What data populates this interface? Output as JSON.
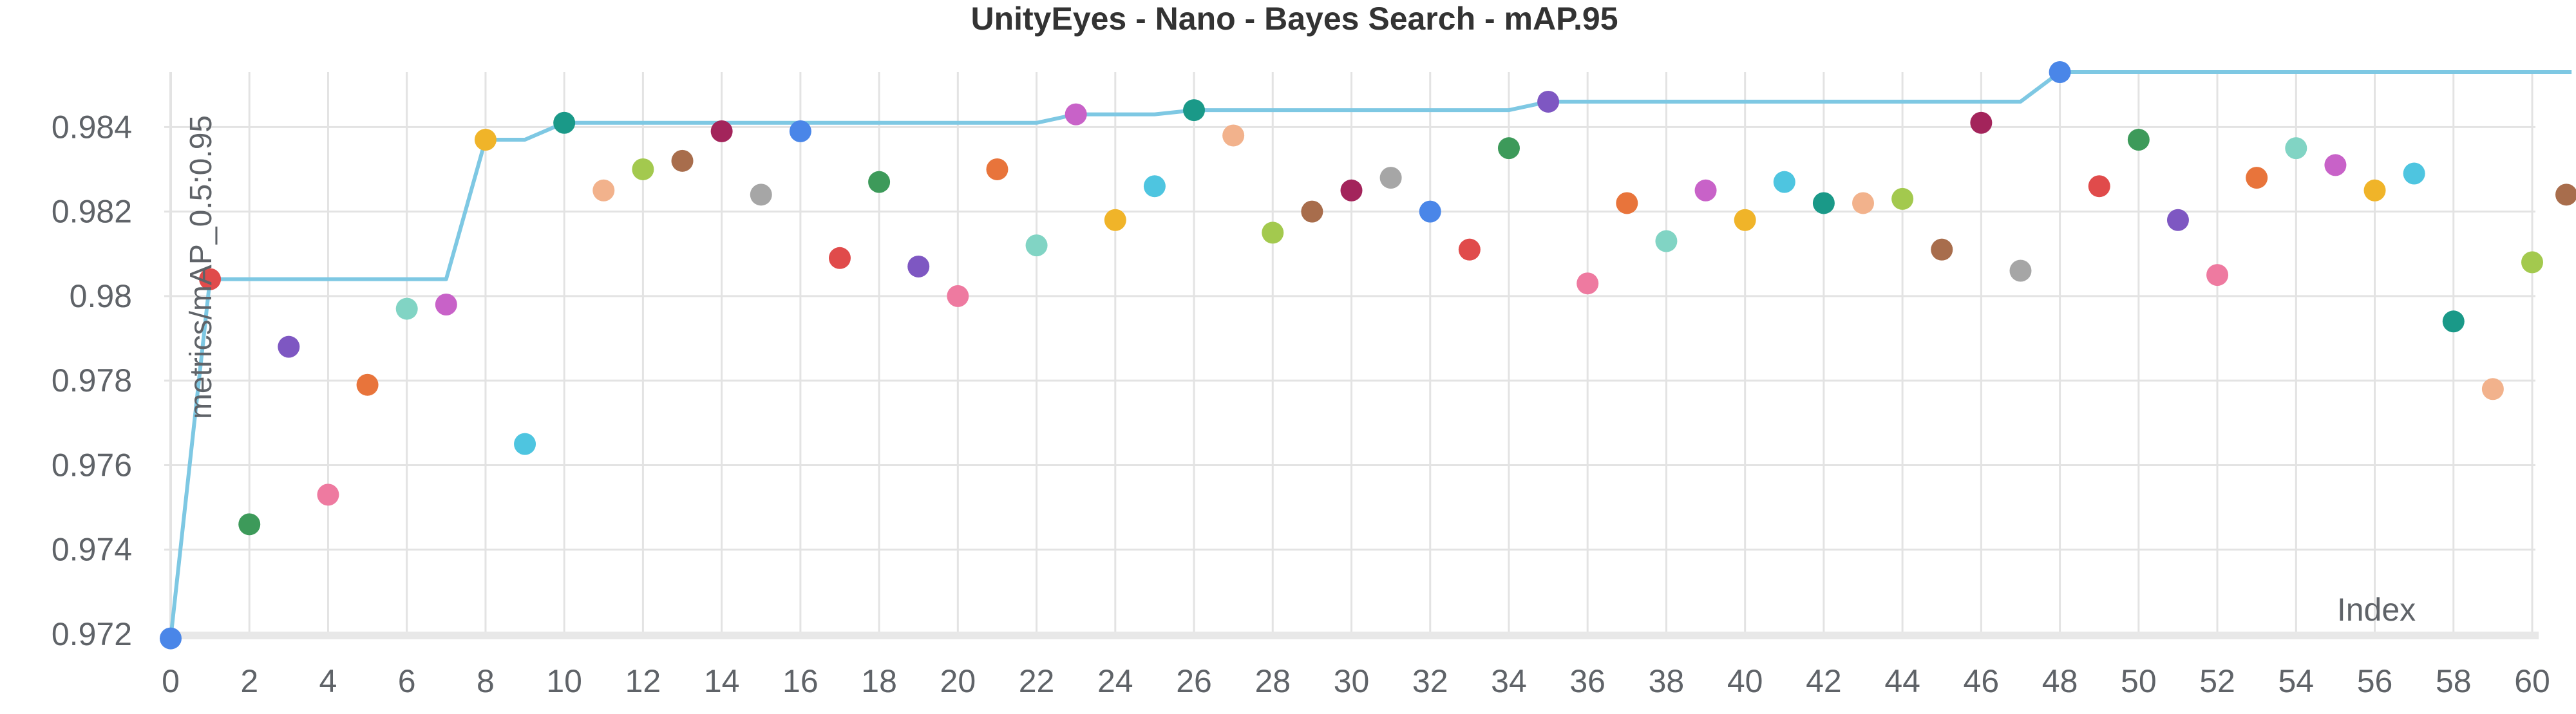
{
  "chart_data": {
    "type": "scatter",
    "title": "UnityEyes - Nano - Bayes Search - mAP.95",
    "xlabel": "Index",
    "ylabel": "metrics/mAP_0.5:0.95",
    "xlim": [
      0,
      60
    ],
    "ylim": [
      0.972,
      0.9853
    ],
    "x_ticks": [
      "0",
      "2",
      "4",
      "6",
      "8",
      "10",
      "12",
      "14",
      "16",
      "18",
      "20",
      "22",
      "24",
      "26",
      "28",
      "30",
      "32",
      "34",
      "36",
      "38",
      "40",
      "42",
      "44",
      "46",
      "48",
      "50",
      "52",
      "54",
      "56",
      "58",
      "60"
    ],
    "y_ticks": [
      "0.972",
      "0.974",
      "0.976",
      "0.978",
      "0.98",
      "0.982",
      "0.984"
    ],
    "grid": true,
    "legend": "none",
    "series": [
      {
        "type": "scatter",
        "points": [
          {
            "x": 0,
            "y": 0.9719,
            "color": "#4a86e8"
          },
          {
            "x": 1,
            "y": 0.9804,
            "color": "#e04b4b"
          },
          {
            "x": 2,
            "y": 0.9746,
            "color": "#3d9a5a"
          },
          {
            "x": 3,
            "y": 0.9788,
            "color": "#7e57c2"
          },
          {
            "x": 4,
            "y": 0.9753,
            "color": "#ee7aa0"
          },
          {
            "x": 5,
            "y": 0.9779,
            "color": "#e8743b"
          },
          {
            "x": 6,
            "y": 0.9797,
            "color": "#81d4c4"
          },
          {
            "x": 7,
            "y": 0.9798,
            "color": "#c862c8"
          },
          {
            "x": 8,
            "y": 0.9837,
            "color": "#f0b429"
          },
          {
            "x": 9,
            "y": 0.9765,
            "color": "#4ec5e0"
          },
          {
            "x": 10,
            "y": 0.9841,
            "color": "#1a9988"
          },
          {
            "x": 11,
            "y": 0.9825,
            "color": "#f2b28c"
          },
          {
            "x": 12,
            "y": 0.983,
            "color": "#a3c94e"
          },
          {
            "x": 13,
            "y": 0.9832,
            "color": "#a86d4c"
          },
          {
            "x": 14,
            "y": 0.9839,
            "color": "#a3245b"
          },
          {
            "x": 15,
            "y": 0.9824,
            "color": "#a6a6a6"
          },
          {
            "x": 16,
            "y": 0.9839,
            "color": "#4a86e8"
          },
          {
            "x": 17,
            "y": 0.9809,
            "color": "#e04b4b"
          },
          {
            "x": 18,
            "y": 0.9827,
            "color": "#3d9a5a"
          },
          {
            "x": 19,
            "y": 0.9807,
            "color": "#7e57c2"
          },
          {
            "x": 20,
            "y": 0.98,
            "color": "#ee7aa0"
          },
          {
            "x": 21,
            "y": 0.983,
            "color": "#e8743b"
          },
          {
            "x": 22,
            "y": 0.9812,
            "color": "#81d4c4"
          },
          {
            "x": 23,
            "y": 0.9843,
            "color": "#c862c8"
          },
          {
            "x": 24,
            "y": 0.9818,
            "color": "#f0b429"
          },
          {
            "x": 25,
            "y": 0.9826,
            "color": "#4ec5e0"
          },
          {
            "x": 26,
            "y": 0.9844,
            "color": "#1a9988"
          },
          {
            "x": 27,
            "y": 0.9838,
            "color": "#f2b28c"
          },
          {
            "x": 28,
            "y": 0.9815,
            "color": "#a3c94e"
          },
          {
            "x": 29,
            "y": 0.982,
            "color": "#a86d4c"
          },
          {
            "x": 30,
            "y": 0.9825,
            "color": "#a3245b"
          },
          {
            "x": 31,
            "y": 0.9828,
            "color": "#a6a6a6"
          },
          {
            "x": 32,
            "y": 0.982,
            "color": "#4a86e8"
          },
          {
            "x": 33,
            "y": 0.9811,
            "color": "#e04b4b"
          },
          {
            "x": 34,
            "y": 0.9835,
            "color": "#3d9a5a"
          },
          {
            "x": 35,
            "y": 0.9846,
            "color": "#7e57c2"
          },
          {
            "x": 36,
            "y": 0.9803,
            "color": "#ee7aa0"
          },
          {
            "x": 37,
            "y": 0.9822,
            "color": "#e8743b"
          },
          {
            "x": 38,
            "y": 0.9813,
            "color": "#81d4c4"
          },
          {
            "x": 39,
            "y": 0.9825,
            "color": "#c862c8"
          },
          {
            "x": 40,
            "y": 0.9818,
            "color": "#f0b429"
          },
          {
            "x": 41,
            "y": 0.9827,
            "color": "#4ec5e0"
          },
          {
            "x": 42,
            "y": 0.9822,
            "color": "#1a9988"
          },
          {
            "x": 43,
            "y": 0.9822,
            "color": "#f2b28c"
          },
          {
            "x": 44,
            "y": 0.9823,
            "color": "#a3c94e"
          },
          {
            "x": 45,
            "y": 0.9811,
            "color": "#a86d4c"
          },
          {
            "x": 46,
            "y": 0.9841,
            "color": "#a3245b"
          },
          {
            "x": 47,
            "y": 0.9806,
            "color": "#a6a6a6"
          },
          {
            "x": 48,
            "y": 0.9853,
            "color": "#4a86e8"
          },
          {
            "x": 49,
            "y": 0.9826,
            "color": "#e04b4b"
          },
          {
            "x": 50,
            "y": 0.9837,
            "color": "#3d9a5a"
          },
          {
            "x": 51,
            "y": 0.9818,
            "color": "#7e57c2"
          },
          {
            "x": 52,
            "y": 0.9805,
            "color": "#ee7aa0"
          },
          {
            "x": 53,
            "y": 0.9828,
            "color": "#e8743b"
          },
          {
            "x": 54,
            "y": 0.9835,
            "color": "#81d4c4"
          },
          {
            "x": 55,
            "y": 0.9831,
            "color": "#c862c8"
          },
          {
            "x": 56,
            "y": 0.9825,
            "color": "#f0b429"
          },
          {
            "x": 57,
            "y": 0.9829,
            "color": "#4ec5e0"
          },
          {
            "x": 58,
            "y": 0.9794,
            "color": "#1a9988"
          },
          {
            "x": 59,
            "y": 0.9778,
            "color": "#f2b28c"
          },
          {
            "x": 60,
            "y": 0.9808,
            "color": "#a3c94e"
          },
          {
            "x": 61,
            "y": 0.9824,
            "color": "#a86d4c"
          }
        ]
      },
      {
        "type": "line",
        "color": "#7ec8e3",
        "points": [
          {
            "x": 0,
            "y": 0.9719
          },
          {
            "x": 1,
            "y": 0.9804
          },
          {
            "x": 7,
            "y": 0.9804
          },
          {
            "x": 8,
            "y": 0.9837
          },
          {
            "x": 9,
            "y": 0.9837
          },
          {
            "x": 10,
            "y": 0.9841
          },
          {
            "x": 22,
            "y": 0.9841
          },
          {
            "x": 23,
            "y": 0.9843
          },
          {
            "x": 25,
            "y": 0.9843
          },
          {
            "x": 26,
            "y": 0.9844
          },
          {
            "x": 34,
            "y": 0.9844
          },
          {
            "x": 35,
            "y": 0.9846
          },
          {
            "x": 47,
            "y": 0.9846
          },
          {
            "x": 48,
            "y": 0.9853
          },
          {
            "x": 61,
            "y": 0.9853
          }
        ]
      }
    ]
  }
}
